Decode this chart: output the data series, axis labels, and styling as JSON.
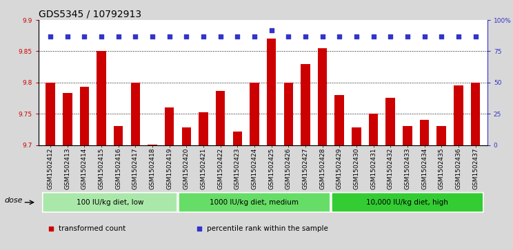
{
  "title": "GDS5345 / 10792913",
  "samples": [
    "GSM1502412",
    "GSM1502413",
    "GSM1502414",
    "GSM1502415",
    "GSM1502416",
    "GSM1502417",
    "GSM1502418",
    "GSM1502419",
    "GSM1502420",
    "GSM1502421",
    "GSM1502422",
    "GSM1502423",
    "GSM1502424",
    "GSM1502425",
    "GSM1502426",
    "GSM1502427",
    "GSM1502428",
    "GSM1502429",
    "GSM1502430",
    "GSM1502431",
    "GSM1502432",
    "GSM1502433",
    "GSM1502434",
    "GSM1502435",
    "GSM1502436",
    "GSM1502437"
  ],
  "bar_values": [
    9.8,
    9.783,
    9.793,
    9.85,
    9.73,
    9.8,
    9.701,
    9.76,
    9.728,
    9.752,
    9.787,
    9.722,
    9.8,
    9.87,
    9.8,
    9.83,
    9.855,
    9.78,
    9.728,
    9.75,
    9.775,
    9.73,
    9.74,
    9.73,
    9.795,
    9.8
  ],
  "percentile_values": [
    87,
    87,
    87,
    87,
    87,
    87,
    87,
    87,
    87,
    87,
    87,
    87,
    87,
    92,
    87,
    87,
    87,
    87,
    87,
    87,
    87,
    87,
    87,
    87,
    87,
    87
  ],
  "bar_color": "#cc0000",
  "dot_color": "#3333cc",
  "ylim_left": [
    9.7,
    9.9
  ],
  "ylim_right": [
    0,
    100
  ],
  "yticks_left": [
    9.7,
    9.75,
    9.8,
    9.85,
    9.9
  ],
  "ytick_labels_left": [
    "9.7",
    "9.75",
    "9.8",
    "9.85",
    "9.9"
  ],
  "yticks_right": [
    0,
    25,
    50,
    75,
    100
  ],
  "ytick_labels_right": [
    "0",
    "25",
    "50",
    "75",
    "100%"
  ],
  "grid_lines": [
    9.75,
    9.8,
    9.85
  ],
  "groups": [
    {
      "label": "100 IU/kg diet, low",
      "start": 0,
      "end": 8
    },
    {
      "label": "1000 IU/kg diet, medium",
      "start": 8,
      "end": 17
    },
    {
      "label": "10,000 IU/kg diet, high",
      "start": 17,
      "end": 26
    }
  ],
  "group_colors": [
    "#aae8aa",
    "#66dd66",
    "#33cc33"
  ],
  "xlabel_dose": "dose",
  "legend_items": [
    {
      "label": "transformed count",
      "color": "#cc0000",
      "marker": "s"
    },
    {
      "label": "percentile rank within the sample",
      "color": "#3333cc",
      "marker": "s"
    }
  ],
  "bg_color": "#d8d8d8",
  "xtick_bg": "#c8c8c8",
  "plot_bg": "#ffffff",
  "title_fontsize": 10,
  "tick_fontsize": 6.5,
  "bar_width": 0.55
}
